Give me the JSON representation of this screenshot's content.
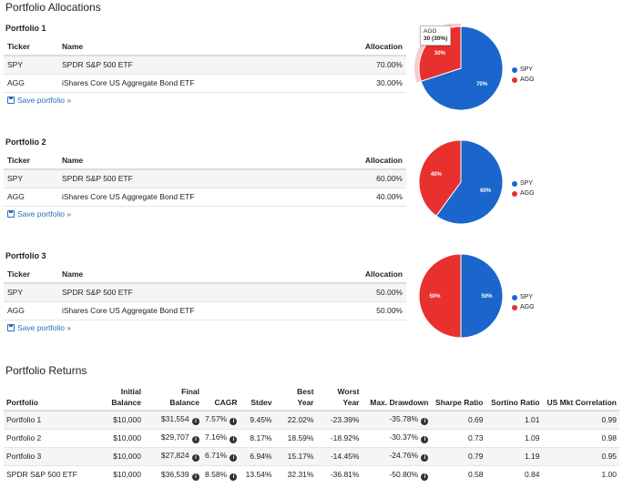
{
  "page": {
    "title": "Portfolio Allocations",
    "returns_title": "Portfolio Returns"
  },
  "colors": {
    "spy": "#1a66cc",
    "agg": "#e8302f"
  },
  "headers": {
    "ticker": "Ticker",
    "name": "Name",
    "allocation": "Allocation"
  },
  "save_label": "Save portfolio »",
  "portfolios": [
    {
      "title": "Portfolio 1",
      "rows": [
        {
          "ticker": "SPY",
          "name": "SPDR S&P 500 ETF",
          "allocation": "70.00%"
        },
        {
          "ticker": "AGG",
          "name": "iShares Core US Aggregate Bond ETF",
          "allocation": "30.00%"
        }
      ]
    },
    {
      "title": "Portfolio 2",
      "rows": [
        {
          "ticker": "SPY",
          "name": "SPDR S&P 500 ETF",
          "allocation": "60.00%"
        },
        {
          "ticker": "AGG",
          "name": "iShares Core US Aggregate Bond ETF",
          "allocation": "40.00%"
        }
      ]
    },
    {
      "title": "Portfolio 3",
      "rows": [
        {
          "ticker": "SPY",
          "name": "SPDR S&P 500 ETF",
          "allocation": "50.00%"
        },
        {
          "ticker": "AGG",
          "name": "iShares Core US Aggregate Bond ETF",
          "allocation": "50.00%"
        }
      ]
    }
  ],
  "chart_data": [
    {
      "type": "pie",
      "categories": [
        "SPY",
        "AGG"
      ],
      "values": [
        70,
        30
      ],
      "labels": [
        "70%",
        "30%"
      ],
      "legend": "right",
      "tooltip": {
        "line1": "AGG",
        "line2": "30 (30%)"
      }
    },
    {
      "type": "pie",
      "categories": [
        "SPY",
        "AGG"
      ],
      "values": [
        60,
        40
      ],
      "labels": [
        "60%",
        "40%"
      ],
      "legend": "right"
    },
    {
      "type": "pie",
      "categories": [
        "SPY",
        "AGG"
      ],
      "values": [
        50,
        50
      ],
      "labels": [
        "50%",
        "50%"
      ],
      "legend": "right"
    }
  ],
  "returns": {
    "headers": {
      "portfolio": "Portfolio",
      "initial1": "Initial",
      "initial2": "Balance",
      "final1": "Final",
      "final2": "Balance",
      "cagr": "CAGR",
      "stdev": "Stdev",
      "best1": "Best",
      "best2": "Year",
      "worst1": "Worst",
      "worst2": "Year",
      "drawdown": "Max. Drawdown",
      "sharpe": "Sharpe Ratio",
      "sortino": "Sortino Ratio",
      "correlation": "US Mkt Correlation"
    },
    "rows": [
      {
        "portfolio": "Portfolio 1",
        "initial": "$10,000",
        "final": "$31,554",
        "cagr": "7.57%",
        "stdev": "9.45%",
        "best": "22.02%",
        "worst": "-23.39%",
        "drawdown": "-35.78%",
        "sharpe": "0.69",
        "sortino": "1.01",
        "correlation": "0.99"
      },
      {
        "portfolio": "Portfolio 2",
        "initial": "$10,000",
        "final": "$29,707",
        "cagr": "7.16%",
        "stdev": "8.17%",
        "best": "18.59%",
        "worst": "-18.92%",
        "drawdown": "-30.37%",
        "sharpe": "0.73",
        "sortino": "1.09",
        "correlation": "0.98"
      },
      {
        "portfolio": "Portfolio 3",
        "initial": "$10,000",
        "final": "$27,824",
        "cagr": "6.71%",
        "stdev": "6.94%",
        "best": "15.17%",
        "worst": "-14.45%",
        "drawdown": "-24.76%",
        "sharpe": "0.79",
        "sortino": "1.19",
        "correlation": "0.95"
      },
      {
        "portfolio": "SPDR S&P 500 ETF",
        "initial": "$10,000",
        "final": "$36,539",
        "cagr": "8.58%",
        "stdev": "13.54%",
        "best": "32.31%",
        "worst": "-36.81%",
        "drawdown": "-50.80%",
        "sharpe": "0.58",
        "sortino": "0.84",
        "correlation": "1.00"
      }
    ]
  }
}
